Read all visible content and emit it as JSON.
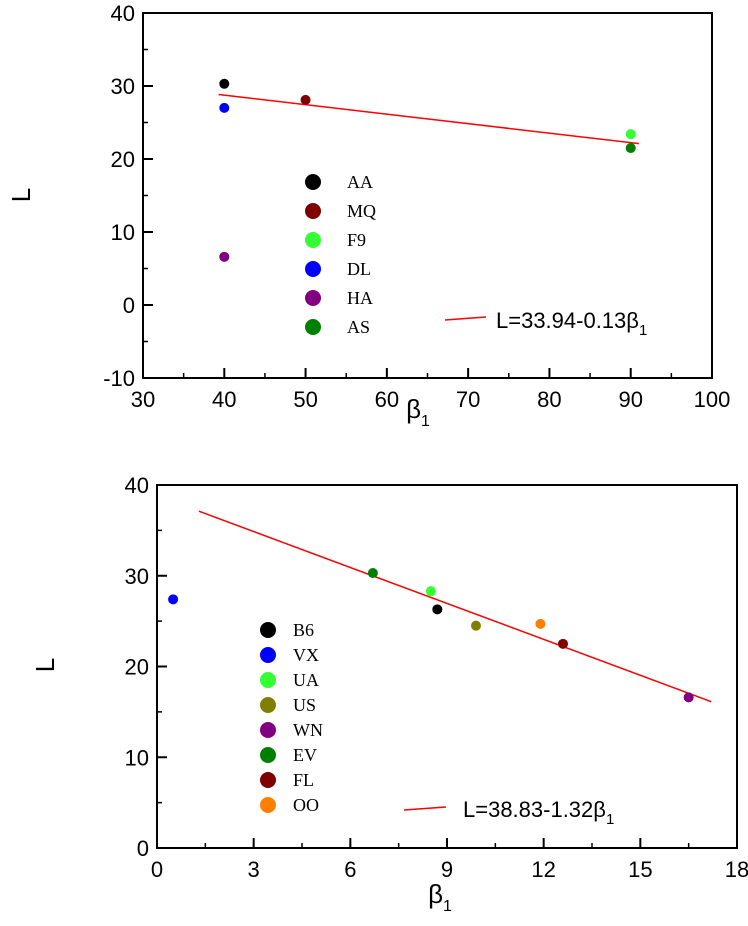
{
  "chart_data": [
    {
      "type": "scatter",
      "title": "",
      "xlabel": "β",
      "xlabel_sub": "1",
      "ylabel": "L",
      "xlim": [
        30,
        100
      ],
      "ylim": [
        -10,
        40
      ],
      "xticks": [
        30,
        40,
        50,
        60,
        70,
        80,
        90,
        100
      ],
      "yticks": [
        -10,
        0,
        10,
        20,
        30,
        40
      ],
      "xminor": 5,
      "yminor": 5,
      "grid": false,
      "legend_position": "center-left",
      "series": [
        {
          "name": "AA",
          "color": "#000000",
          "points": [
            [
              40,
              30.3
            ]
          ]
        },
        {
          "name": "MQ",
          "color": "#800000",
          "points": [
            [
              50,
              28.1
            ]
          ]
        },
        {
          "name": "F9",
          "color": "#33ff33",
          "points": [
            [
              90,
              23.4
            ]
          ]
        },
        {
          "name": "DL",
          "color": "#0000ff",
          "points": [
            [
              40,
              27.0
            ]
          ]
        },
        {
          "name": "HA",
          "color": "#800080",
          "points": [
            [
              40,
              6.6
            ]
          ]
        },
        {
          "name": "AS",
          "color": "#008000",
          "points": [
            [
              90,
              21.5
            ]
          ]
        }
      ],
      "fit": {
        "color": "#ff0000",
        "x_range": [
          39.3,
          91
        ],
        "intercept": 33.94,
        "slope": -0.13,
        "label": "L=33.94-0.13β",
        "label_sub": "1"
      }
    },
    {
      "type": "scatter",
      "title": "",
      "xlabel": "β",
      "xlabel_sub": "1",
      "ylabel": "L",
      "xlim": [
        0,
        18
      ],
      "ylim": [
        0,
        40
      ],
      "xticks": [
        0,
        3,
        6,
        9,
        12,
        15,
        18
      ],
      "yticks": [
        0,
        10,
        20,
        30,
        40
      ],
      "xminor": 1.5,
      "yminor": 5,
      "grid": false,
      "legend_position": "bottom-left",
      "series": [
        {
          "name": "B6",
          "color": "#000000",
          "points": [
            [
              8.7,
              26.3
            ]
          ]
        },
        {
          "name": "VX",
          "color": "#0000ff",
          "points": [
            [
              0.5,
              27.4
            ]
          ]
        },
        {
          "name": "UA",
          "color": "#33ff33",
          "points": [
            [
              8.5,
              28.3
            ]
          ]
        },
        {
          "name": "US",
          "color": "#808000",
          "points": [
            [
              9.9,
              24.5
            ]
          ]
        },
        {
          "name": "WN",
          "color": "#800080",
          "points": [
            [
              16.5,
              16.6
            ]
          ]
        },
        {
          "name": "EV",
          "color": "#008000",
          "points": [
            [
              6.7,
              30.3
            ]
          ]
        },
        {
          "name": "FL",
          "color": "#800000",
          "points": [
            [
              12.6,
              22.5
            ]
          ]
        },
        {
          "name": "OO",
          "color": "#ff8000",
          "points": [
            [
              11.9,
              24.7
            ]
          ]
        }
      ],
      "fit": {
        "color": "#ff0000",
        "x_range": [
          1.3,
          17.2
        ],
        "intercept": 38.83,
        "slope": -1.32,
        "label": "L=38.83-1.32β",
        "label_sub": "1"
      }
    }
  ]
}
